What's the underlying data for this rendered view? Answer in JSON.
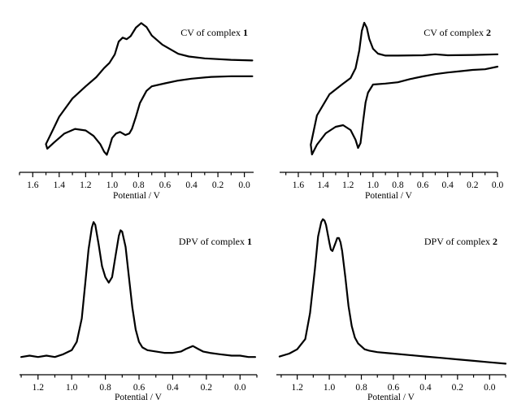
{
  "chart_data": [
    {
      "type": "line",
      "title_prefix": "CV of complex ",
      "title_bold": "1",
      "xlabel": "Potential / V",
      "xlim": [
        1.7,
        -0.07
      ],
      "xticks": [
        "1.6",
        "1.4",
        "1.2",
        "1.0",
        "0.8",
        "0.6",
        "0.4",
        "0.2",
        "0.0"
      ],
      "series": [
        {
          "x": [
            -0.06,
            0.1,
            0.3,
            0.42,
            0.5,
            0.62,
            0.7,
            0.74,
            0.78,
            0.82,
            0.86,
            0.89,
            0.92,
            0.95,
            0.98,
            1.02,
            1.06,
            1.12,
            1.2,
            1.3,
            1.4,
            1.45,
            1.5,
            1.49,
            1.44,
            1.36,
            1.28,
            1.2,
            1.14,
            1.09,
            1.06,
            1.04,
            1.02,
            1.0,
            0.97,
            0.94,
            0.9,
            0.87,
            0.85,
            0.82,
            0.79,
            0.74,
            0.7,
            0.6,
            0.5,
            0.4,
            0.25,
            0.1,
            -0.06
          ],
          "y": [
            0.8,
            0.82,
            0.87,
            0.93,
            1.02,
            1.32,
            1.62,
            1.9,
            2.03,
            1.88,
            1.6,
            1.5,
            1.55,
            1.42,
            1.0,
            0.72,
            0.55,
            0.25,
            -0.05,
            -0.45,
            -1.05,
            -1.5,
            -1.95,
            -2.1,
            -1.9,
            -1.6,
            -1.45,
            -1.5,
            -1.68,
            -1.95,
            -2.2,
            -2.3,
            -2.05,
            -1.75,
            -1.6,
            -1.55,
            -1.65,
            -1.6,
            -1.45,
            -1.05,
            -0.6,
            -0.2,
            -0.05,
            0.05,
            0.14,
            0.2,
            0.26,
            0.28,
            0.28
          ]
        }
      ]
    },
    {
      "type": "line",
      "title_prefix": "CV of complex ",
      "title_bold": "2",
      "xlabel": "Potential / V",
      "xlim": [
        1.75,
        0.0
      ],
      "xticks": [
        "1.6",
        "1.4",
        "1.2",
        "1.0",
        "0.8",
        "0.6",
        "0.4",
        "0.2",
        "0.0"
      ],
      "series": [
        {
          "x": [
            0.0,
            0.2,
            0.4,
            0.5,
            0.6,
            0.8,
            0.9,
            0.96,
            1.0,
            1.03,
            1.05,
            1.07,
            1.09,
            1.11,
            1.14,
            1.18,
            1.25,
            1.35,
            1.45,
            1.5,
            1.49,
            1.45,
            1.38,
            1.3,
            1.24,
            1.18,
            1.14,
            1.12,
            1.1,
            1.08,
            1.06,
            1.04,
            1.0,
            0.9,
            0.8,
            0.7,
            0.6,
            0.5,
            0.4,
            0.3,
            0.2,
            0.1,
            0.0
          ],
          "y": [
            0.88,
            0.86,
            0.85,
            0.88,
            0.85,
            0.84,
            0.84,
            0.9,
            1.05,
            1.35,
            1.7,
            1.85,
            1.6,
            1.0,
            0.45,
            0.15,
            -0.05,
            -0.35,
            -1.0,
            -1.9,
            -2.2,
            -1.9,
            -1.55,
            -1.35,
            -1.3,
            -1.45,
            -1.75,
            -2.0,
            -1.85,
            -1.2,
            -0.6,
            -0.3,
            -0.05,
            -0.02,
            0.02,
            0.12,
            0.2,
            0.27,
            0.32,
            0.36,
            0.4,
            0.42,
            0.5
          ]
        }
      ]
    },
    {
      "type": "line",
      "title_prefix": "DPV of complex ",
      "title_bold": "1",
      "xlabel": "Potential / V",
      "xlim": [
        1.31,
        -0.1
      ],
      "xticks": [
        "1.2",
        "1.0",
        "0.8",
        "0.6",
        "0.4",
        "0.2",
        "0.0"
      ],
      "series": [
        {
          "x": [
            1.3,
            1.25,
            1.2,
            1.15,
            1.1,
            1.05,
            1.0,
            0.97,
            0.94,
            0.92,
            0.9,
            0.88,
            0.87,
            0.86,
            0.84,
            0.82,
            0.8,
            0.78,
            0.76,
            0.74,
            0.72,
            0.71,
            0.7,
            0.68,
            0.66,
            0.64,
            0.62,
            0.6,
            0.58,
            0.55,
            0.5,
            0.45,
            0.4,
            0.35,
            0.32,
            0.28,
            0.25,
            0.22,
            0.18,
            0.12,
            0.05,
            0.0,
            -0.05,
            -0.09
          ],
          "y": [
            0.02,
            0.03,
            0.02,
            0.03,
            0.02,
            0.04,
            0.07,
            0.13,
            0.3,
            0.55,
            0.8,
            0.96,
            1.0,
            0.98,
            0.84,
            0.68,
            0.6,
            0.56,
            0.6,
            0.75,
            0.9,
            0.94,
            0.93,
            0.82,
            0.6,
            0.38,
            0.22,
            0.13,
            0.09,
            0.07,
            0.06,
            0.05,
            0.05,
            0.06,
            0.08,
            0.1,
            0.08,
            0.06,
            0.05,
            0.04,
            0.03,
            0.03,
            0.02,
            0.02
          ]
        }
      ]
    },
    {
      "type": "line",
      "title_prefix": "DPV of complex ",
      "title_bold": "2",
      "xlabel": "Potential / V",
      "xlim": [
        1.33,
        -0.1
      ],
      "xticks": [
        "1.2",
        "1.0",
        "0.8",
        "0.6",
        "0.4",
        "0.2",
        "0.0"
      ],
      "series": [
        {
          "x": [
            1.31,
            1.25,
            1.2,
            1.15,
            1.12,
            1.09,
            1.07,
            1.05,
            1.04,
            1.03,
            1.02,
            1.0,
            0.99,
            0.98,
            0.96,
            0.95,
            0.94,
            0.93,
            0.92,
            0.9,
            0.88,
            0.86,
            0.84,
            0.82,
            0.8,
            0.78,
            0.75,
            0.7,
            0.65,
            0.6,
            0.5,
            0.4,
            0.3,
            0.2,
            0.1,
            0.0,
            -0.1
          ],
          "y": [
            0.05,
            0.07,
            0.1,
            0.17,
            0.35,
            0.65,
            0.88,
            0.98,
            1.0,
            0.99,
            0.96,
            0.84,
            0.79,
            0.78,
            0.84,
            0.87,
            0.87,
            0.84,
            0.78,
            0.6,
            0.4,
            0.26,
            0.18,
            0.14,
            0.12,
            0.1,
            0.09,
            0.08,
            0.075,
            0.07,
            0.06,
            0.05,
            0.04,
            0.03,
            0.02,
            0.01,
            0.0
          ]
        }
      ]
    }
  ]
}
